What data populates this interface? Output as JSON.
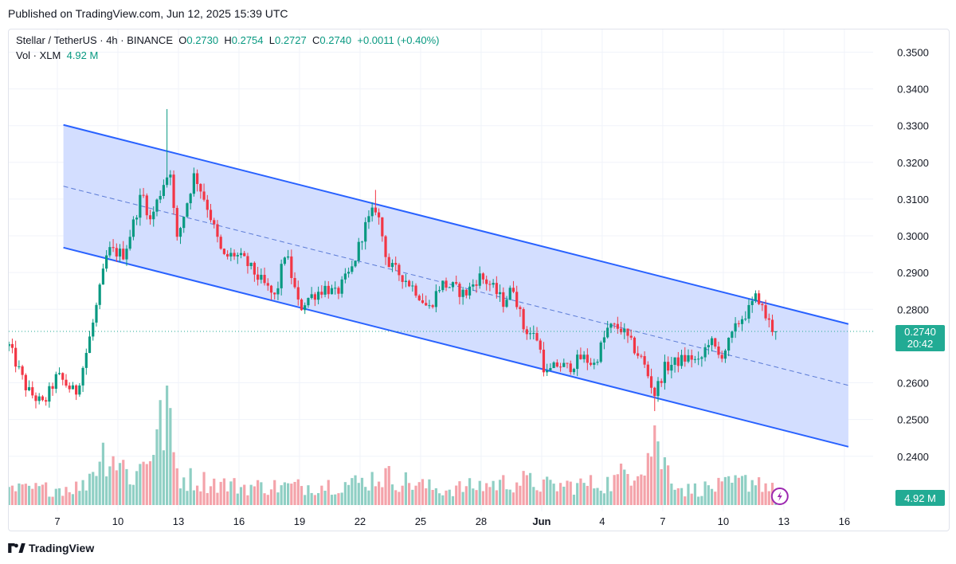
{
  "published": "Published on TradingView.com, Jun 12, 2025 15:39 UTC",
  "legend": {
    "symbol": "Stellar / TetherUS · 4h · BINANCE",
    "o_key": "O",
    "o_val": "0.2730",
    "h_key": "H",
    "h_val": "0.2754",
    "l_key": "L",
    "l_val": "0.2727",
    "c_key": "C",
    "c_val": "0.2740",
    "change": "+0.0011 (+0.40%)",
    "vol_label": "Vol · XLM",
    "vol_val": "4.92 M"
  },
  "footer": {
    "brand": "TradingView",
    "logo_icon": "tradingview-logo-icon"
  },
  "colors": {
    "up": "#089981",
    "down": "#f23645",
    "channel_line": "#2962ff",
    "channel_fill": "#d1dcff",
    "vol_up": "#8fcfc4",
    "vol_down": "#f4a3aa",
    "price_tag": "#22ab94"
  },
  "chart_data": {
    "type": "candlestick",
    "symbol": "Stellar / TetherUS",
    "interval": "4h",
    "exchange": "BINANCE",
    "yaxis": {
      "ticks": [
        "0.3500",
        "0.3400",
        "0.3300",
        "0.3200",
        "0.3100",
        "0.3000",
        "0.2900",
        "0.2800",
        "0.2600",
        "0.2500",
        "0.2400"
      ],
      "ylim": [
        0.238,
        0.354
      ]
    },
    "xaxis": {
      "ticks": [
        {
          "label": "7",
          "day": 7
        },
        {
          "label": "10",
          "day": 10
        },
        {
          "label": "13",
          "day": 13
        },
        {
          "label": "16",
          "day": 16
        },
        {
          "label": "19",
          "day": 19
        },
        {
          "label": "22",
          "day": 22
        },
        {
          "label": "25",
          "day": 25
        },
        {
          "label": "28",
          "day": 28
        },
        {
          "label": "Jun",
          "day": 31,
          "bold": true
        },
        {
          "label": "4",
          "day": 34
        },
        {
          "label": "7",
          "day": 37
        },
        {
          "label": "10",
          "day": 40
        },
        {
          "label": "13",
          "day": 43
        },
        {
          "label": "16",
          "day": 46
        }
      ],
      "note": "day = days since May 1 2025; Jun 1 = 31"
    },
    "key_points": [
      {
        "day": 4.6,
        "close": 0.27
      },
      {
        "day": 5.5,
        "close": 0.258
      },
      {
        "day": 6.3,
        "close": 0.254
      },
      {
        "day": 7.0,
        "close": 0.262
      },
      {
        "day": 7.9,
        "close": 0.257
      },
      {
        "day": 8.3,
        "close": 0.265
      },
      {
        "day": 8.8,
        "close": 0.277
      },
      {
        "day": 9.5,
        "close": 0.296
      },
      {
        "day": 10.3,
        "close": 0.295
      },
      {
        "day": 10.8,
        "close": 0.304
      },
      {
        "day": 11.2,
        "close": 0.312
      },
      {
        "day": 11.6,
        "close": 0.304
      },
      {
        "day": 12.3,
        "close": 0.315
      },
      {
        "day": 12.6,
        "close": 0.318
      },
      {
        "day": 12.9,
        "close": 0.298
      },
      {
        "day": 13.8,
        "close": 0.317
      },
      {
        "day": 14.5,
        "close": 0.307
      },
      {
        "day": 15.2,
        "close": 0.294
      },
      {
        "day": 15.8,
        "close": 0.295
      },
      {
        "day": 16.3,
        "close": 0.293
      },
      {
        "day": 17.2,
        "close": 0.287
      },
      {
        "day": 17.8,
        "close": 0.283
      },
      {
        "day": 18.3,
        "close": 0.296
      },
      {
        "day": 19.0,
        "close": 0.28
      },
      {
        "day": 19.4,
        "close": 0.283
      },
      {
        "day": 20.3,
        "close": 0.286
      },
      {
        "day": 20.8,
        "close": 0.284
      },
      {
        "day": 21.6,
        "close": 0.291
      },
      {
        "day": 22.2,
        "close": 0.302
      },
      {
        "day": 22.8,
        "close": 0.308
      },
      {
        "day": 23.4,
        "close": 0.292
      },
      {
        "day": 24.1,
        "close": 0.289
      },
      {
        "day": 24.8,
        "close": 0.285
      },
      {
        "day": 25.4,
        "close": 0.28
      },
      {
        "day": 26.0,
        "close": 0.287
      },
      {
        "day": 26.6,
        "close": 0.286
      },
      {
        "day": 27.2,
        "close": 0.284
      },
      {
        "day": 27.9,
        "close": 0.289
      },
      {
        "day": 28.4,
        "close": 0.287
      },
      {
        "day": 29.1,
        "close": 0.282
      },
      {
        "day": 29.6,
        "close": 0.286
      },
      {
        "day": 30.1,
        "close": 0.275
      },
      {
        "day": 30.8,
        "close": 0.272
      },
      {
        "day": 31.2,
        "close": 0.262
      },
      {
        "day": 31.8,
        "close": 0.265
      },
      {
        "day": 32.3,
        "close": 0.264
      },
      {
        "day": 33.0,
        "close": 0.267
      },
      {
        "day": 33.6,
        "close": 0.265
      },
      {
        "day": 34.3,
        "close": 0.275
      },
      {
        "day": 34.9,
        "close": 0.275
      },
      {
        "day": 35.5,
        "close": 0.27
      },
      {
        "day": 36.0,
        "close": 0.266
      },
      {
        "day": 36.6,
        "close": 0.257
      },
      {
        "day": 37.1,
        "close": 0.264
      },
      {
        "day": 37.8,
        "close": 0.266
      },
      {
        "day": 38.4,
        "close": 0.267
      },
      {
        "day": 38.8,
        "close": 0.265
      },
      {
        "day": 39.3,
        "close": 0.272
      },
      {
        "day": 39.8,
        "close": 0.267
      },
      {
        "day": 40.2,
        "close": 0.27
      },
      {
        "day": 40.8,
        "close": 0.277
      },
      {
        "day": 41.3,
        "close": 0.28
      },
      {
        "day": 41.7,
        "close": 0.284
      },
      {
        "day": 42.0,
        "close": 0.279
      },
      {
        "day": 42.4,
        "close": 0.275
      },
      {
        "day": 42.6,
        "close": 0.274
      }
    ],
    "volume_ylim": [
      0,
      4.5
    ],
    "volume_key_points": [
      {
        "day": 4.6,
        "v": 0.8
      },
      {
        "day": 7.0,
        "v": 0.9
      },
      {
        "day": 8.3,
        "v": 1.0
      },
      {
        "day": 9.0,
        "v": 2.5
      },
      {
        "day": 9.5,
        "v": 3.0
      },
      {
        "day": 10.8,
        "v": 1.4
      },
      {
        "day": 12.4,
        "v": 4.7
      },
      {
        "day": 13.0,
        "v": 1.5
      },
      {
        "day": 16.0,
        "v": 1.0
      },
      {
        "day": 19.0,
        "v": 1.0
      },
      {
        "day": 22.0,
        "v": 1.2
      },
      {
        "day": 23.0,
        "v": 1.6
      },
      {
        "day": 26.0,
        "v": 0.8
      },
      {
        "day": 30.0,
        "v": 1.3
      },
      {
        "day": 31.5,
        "v": 1.0
      },
      {
        "day": 34.5,
        "v": 1.2
      },
      {
        "day": 36.6,
        "v": 3.0
      },
      {
        "day": 38.0,
        "v": 0.8
      },
      {
        "day": 40.0,
        "v": 1.0
      },
      {
        "day": 41.7,
        "v": 1.4
      },
      {
        "day": 42.6,
        "v": 0.7
      }
    ],
    "channel": {
      "start_day": 7.3,
      "end_day": 46.2,
      "upper": [
        0.3302,
        0.276
      ],
      "lower": [
        0.2968,
        0.2426
      ],
      "mid": [
        0.3135,
        0.2593
      ]
    },
    "last_price": {
      "value": "0.2740",
      "countdown": "20:42"
    },
    "last_volume": "4.92 M"
  }
}
